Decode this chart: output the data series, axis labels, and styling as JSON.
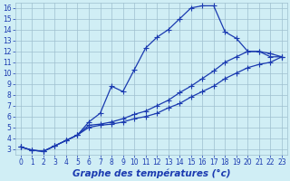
{
  "xlabel": "Graphe des températures (°c)",
  "bg_color": "#d0eef5",
  "grid_color": "#9fbfcf",
  "line_color": "#1a3ab0",
  "marker": "+",
  "markersize": 4,
  "linewidth": 0.9,
  "xlim": [
    -0.5,
    23.5
  ],
  "ylim": [
    2.5,
    16.5
  ],
  "xticks": [
    0,
    1,
    2,
    3,
    4,
    5,
    6,
    7,
    8,
    9,
    10,
    11,
    12,
    13,
    14,
    15,
    16,
    17,
    18,
    19,
    20,
    21,
    22,
    23
  ],
  "yticks": [
    3,
    4,
    5,
    6,
    7,
    8,
    9,
    10,
    11,
    12,
    13,
    14,
    15,
    16
  ],
  "line1_x": [
    0,
    1,
    2,
    3,
    4,
    5,
    6,
    7,
    8,
    9,
    10,
    11,
    12,
    13,
    14,
    15,
    16,
    17,
    18,
    19,
    20,
    21,
    22,
    23
  ],
  "line1_y": [
    3.2,
    2.9,
    2.8,
    3.3,
    3.8,
    4.3,
    5.5,
    6.3,
    8.8,
    8.3,
    10.3,
    12.3,
    13.3,
    14.0,
    15.0,
    16.0,
    16.2,
    16.2,
    13.8,
    13.2,
    12.0,
    12.0,
    11.5,
    11.5
  ],
  "line2_x": [
    0,
    1,
    2,
    3,
    4,
    5,
    6,
    7,
    8,
    9,
    10,
    11,
    12,
    13,
    14,
    15,
    16,
    17,
    18,
    19,
    20,
    21,
    22,
    23
  ],
  "line2_y": [
    3.2,
    2.9,
    2.8,
    3.3,
    3.8,
    4.3,
    5.2,
    5.3,
    5.5,
    5.8,
    6.2,
    6.5,
    7.0,
    7.5,
    8.2,
    8.8,
    9.5,
    10.2,
    11.0,
    11.5,
    12.0,
    12.0,
    11.8,
    11.5
  ],
  "line3_x": [
    0,
    1,
    2,
    3,
    4,
    5,
    6,
    7,
    8,
    9,
    10,
    11,
    12,
    13,
    14,
    15,
    16,
    17,
    18,
    19,
    20,
    21,
    22,
    23
  ],
  "line3_y": [
    3.2,
    2.9,
    2.8,
    3.3,
    3.8,
    4.3,
    5.0,
    5.2,
    5.3,
    5.5,
    5.8,
    6.0,
    6.3,
    6.8,
    7.2,
    7.8,
    8.3,
    8.8,
    9.5,
    10.0,
    10.5,
    10.8,
    11.0,
    11.5
  ],
  "tick_fontsize": 5.5,
  "label_fontsize": 7.5,
  "label_fontweight": "bold"
}
